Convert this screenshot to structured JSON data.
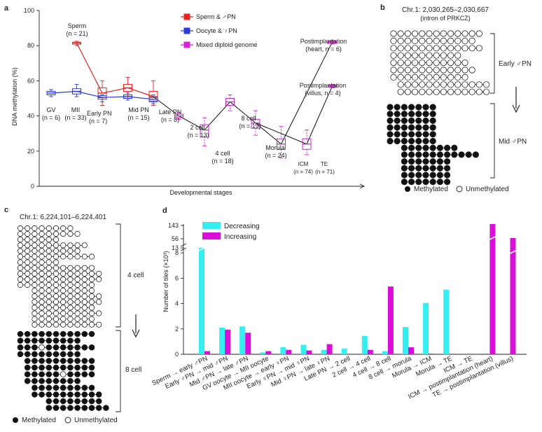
{
  "panels": {
    "a": "a",
    "b": "b",
    "c": "c",
    "d": "d"
  },
  "panel_a": {
    "legend": [
      "Sperm & ♂PN",
      "Oocyte & ♀PN",
      "Mixed diploid genome"
    ],
    "annotations": [
      {
        "key": "sperm",
        "l1": "Sperm",
        "l2": "(n = 21)"
      },
      {
        "key": "gv",
        "l1": "GV",
        "l2": "(n = 6)"
      },
      {
        "key": "mii",
        "l1": "MII",
        "l2": "(n = 33)"
      },
      {
        "key": "early",
        "l1": "Early PN",
        "l2": "(n = 7)"
      },
      {
        "key": "mid",
        "l1": "Mid PN",
        "l2": "(n = 15)"
      },
      {
        "key": "late",
        "l1": "Late PN",
        "l2": "(n = 8)"
      },
      {
        "key": "c2",
        "l1": "2 cell",
        "l2": "(n = 13)"
      },
      {
        "key": "c4",
        "l1": "4 cell",
        "l2": "(n = 18)"
      },
      {
        "key": "c8",
        "l1": "8 cell",
        "l2": "(n = 19)"
      },
      {
        "key": "morula",
        "l1": "Morula",
        "l2": "(n = 24)"
      },
      {
        "key": "icm",
        "l1": "ICM",
        "l2": "(n = 74)"
      },
      {
        "key": "te",
        "l1": "TE",
        "l2": "(n = 71)"
      },
      {
        "key": "heart",
        "l1": "Postimplantation",
        "l2": "(heart, n = 6)"
      },
      {
        "key": "villus",
        "l1": "Postimplantation",
        "l2": "(villus, n = 4)"
      }
    ]
  },
  "panel_b": {
    "title1": "Chr.1: 2,030,265–2,030,667",
    "title2": "(intron of PRKCZ)",
    "label_top": "Early ♂PN",
    "label_bottom": "Mid ♂PN",
    "legend_m": "Methylated",
    "legend_u": "Unmethylated"
  },
  "panel_c": {
    "title": "Chr.1: 6,224,101–6,224,401",
    "label_top": "4 cell",
    "label_bottom": "8 cell",
    "legend_m": "Methylated",
    "legend_u": "Unmethylated"
  },
  "colors": {
    "paternal": "#e8231f",
    "maternal": "#2a3bd6",
    "mixed": "#d523d5",
    "decreasing": "#33eff0",
    "increasing": "#d90fd9"
  },
  "chart_data": [
    {
      "type": "line",
      "panel": "a",
      "xlabel": "Developmental stages",
      "ylabel": "DNA methylation (%)",
      "ylim": [
        0,
        100
      ],
      "yticks": [
        0,
        20,
        40,
        60,
        80,
        100
      ],
      "stage_slots": [
        "GV",
        "MII",
        "Early PN",
        "Mid PN",
        "Late PN",
        "2 cell",
        "4 cell",
        "8 cell",
        "Morula",
        "ICM",
        "TE",
        "Postimplantation"
      ],
      "series": [
        {
          "name": "Sperm & ♂PN",
          "points": [
            {
              "slot": 1,
              "y": 81.5
            },
            {
              "slot": 2,
              "y": 53
            },
            {
              "slot": 3,
              "y": 56
            },
            {
              "slot": 4,
              "y": 51
            }
          ]
        },
        {
          "name": "Oocyte & ♀PN",
          "points": [
            {
              "slot": 0,
              "y": 53
            },
            {
              "slot": 1,
              "y": 54
            },
            {
              "slot": 2,
              "y": 50.5
            },
            {
              "slot": 3,
              "y": 51
            },
            {
              "slot": 4,
              "y": 49.5
            }
          ]
        },
        {
          "name": "Mixed diploid genome",
          "points": [
            {
              "slot": 5,
              "y": 40
            },
            {
              "slot": 6,
              "y": 32
            },
            {
              "slot": 7,
              "y": 48
            },
            {
              "slot": 8,
              "y": 36
            },
            {
              "slot": 9,
              "y": 24
            },
            {
              "slot": 10,
              "y": 24
            },
            {
              "slot": 11,
              "y": 82
            },
            {
              "slot": 11.02,
              "y": 57
            }
          ]
        }
      ],
      "connector_lines": [
        {
          "from": {
            "slot": 4,
            "y": 51
          },
          "to": {
            "slot": 5,
            "y": 40
          }
        },
        {
          "from": {
            "slot": 5,
            "y": 40
          },
          "to": {
            "slot": 6,
            "y": 32
          }
        },
        {
          "from": {
            "slot": 6,
            "y": 32
          },
          "to": {
            "slot": 7,
            "y": 48
          }
        },
        {
          "from": {
            "slot": 7,
            "y": 48
          },
          "to": {
            "slot": 8,
            "y": 36
          }
        },
        {
          "from": {
            "slot": 8,
            "y": 36
          },
          "to": {
            "slot": 9,
            "y": 24
          }
        },
        {
          "from": {
            "slot": 8,
            "y": 36
          },
          "to": {
            "slot": 10,
            "y": 24
          }
        },
        {
          "from": {
            "slot": 9,
            "y": 24
          },
          "to": {
            "slot": 11,
            "y": 82
          }
        },
        {
          "from": {
            "slot": 10,
            "y": 24
          },
          "to": {
            "slot": 11,
            "y": 57
          }
        }
      ],
      "boxes": [
        {
          "slot": 0,
          "y": 53,
          "q1": 52,
          "q3": 54,
          "lo": 51,
          "hi": 55,
          "color": "maternal"
        },
        {
          "slot": 1,
          "y": 54,
          "q1": 52.5,
          "q3": 55.5,
          "lo": 51,
          "hi": 58,
          "color": "maternal"
        },
        {
          "slot": 1,
          "y": 81.5,
          "q1": 81,
          "q3": 82,
          "lo": 80,
          "hi": 82.5,
          "color": "paternal"
        },
        {
          "slot": 2,
          "y": 53,
          "q1": 50.5,
          "q3": 56,
          "lo": 46,
          "hi": 60,
          "color": "paternal"
        },
        {
          "slot": 2,
          "y": 50.5,
          "q1": 49.5,
          "q3": 51.5,
          "lo": 48,
          "hi": 52,
          "color": "maternal"
        },
        {
          "slot": 3,
          "y": 56,
          "q1": 54,
          "q3": 58,
          "lo": 50,
          "hi": 62,
          "color": "paternal"
        },
        {
          "slot": 3,
          "y": 51,
          "q1": 50,
          "q3": 52,
          "lo": 49,
          "hi": 53,
          "color": "maternal"
        },
        {
          "slot": 4,
          "y": 51,
          "q1": 48,
          "q3": 54,
          "lo": 46,
          "hi": 60,
          "color": "paternal"
        },
        {
          "slot": 4,
          "y": 49.5,
          "q1": 48.5,
          "q3": 50.5,
          "lo": 47,
          "hi": 52,
          "color": "maternal"
        },
        {
          "slot": 5,
          "y": 40,
          "q1": 39,
          "q3": 41,
          "lo": 38,
          "hi": 42,
          "color": "mixed"
        },
        {
          "slot": 6,
          "y": 32,
          "q1": 28,
          "q3": 35,
          "lo": 23,
          "hi": 39,
          "color": "mixed"
        },
        {
          "slot": 7,
          "y": 48,
          "q1": 46,
          "q3": 50,
          "lo": 43,
          "hi": 52,
          "color": "mixed"
        },
        {
          "slot": 8,
          "y": 36,
          "q1": 33,
          "q3": 38,
          "lo": 29,
          "hi": 43,
          "color": "mixed"
        },
        {
          "slot": 9,
          "y": 24,
          "q1": 21,
          "q3": 27,
          "lo": 16,
          "hi": 34,
          "color": "mixed"
        },
        {
          "slot": 10,
          "y": 24,
          "q1": 21,
          "q3": 27,
          "lo": 18,
          "hi": 32,
          "color": "mixed"
        },
        {
          "slot": 11,
          "y": 82,
          "q1": 81.5,
          "q3": 82.5,
          "lo": 81,
          "hi": 83,
          "color": "mixed"
        },
        {
          "slot": 11.02,
          "y": 57,
          "q1": 56.5,
          "q3": 57.5,
          "lo": 56,
          "hi": 58,
          "color": "mixed"
        }
      ]
    },
    {
      "type": "bar",
      "panel": "d",
      "ylabel": "Number of tiles (×10³)",
      "yticks_lower": [
        0,
        2,
        4,
        6,
        8
      ],
      "yticks_upper": [
        13,
        56,
        143
      ],
      "legend": [
        "Decreasing",
        "Increasing"
      ],
      "categories": [
        "Sperm → early ♂PN",
        "Early ♂PN → mid ♂PN",
        "Mid ♂PN → late ♂PN",
        "GV oocyte → MII oocyte",
        "MII oocyte → early ♀PN",
        "Early ♀PN → mid ♀PN",
        "Mid ♀PN → late ♀PN",
        "Late PN → 2 cell",
        "2 cell → 4 cell",
        "4 cell → 8 cell",
        "8 cell → morula",
        "Morula → ICM",
        "Morula → TE",
        "ICM → TE",
        "ICM → postimplantation (heart)",
        "TE → postimplantation (villus)"
      ],
      "series": [
        {
          "name": "Decreasing",
          "values": [
            8.5,
            2.1,
            2.2,
            0.15,
            0.55,
            0.75,
            0.35,
            0.45,
            1.45,
            0.25,
            2.15,
            4.05,
            5.1,
            0,
            0,
            0
          ]
        },
        {
          "name": "Increasing",
          "values": [
            0.25,
            1.95,
            1.7,
            0.25,
            0.35,
            0.3,
            0.8,
            0,
            0.35,
            5.35,
            0.55,
            0.05,
            0,
            0,
            143,
            56
          ]
        }
      ]
    }
  ]
}
